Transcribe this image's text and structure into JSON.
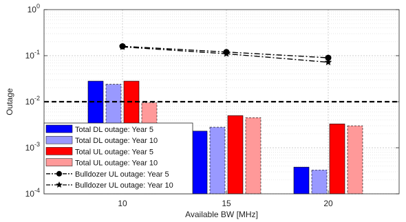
{
  "chart_data": {
    "type": "bar",
    "xlabel": "Available BW [MHz]",
    "ylabel": "Outage",
    "yscale": "log",
    "ylim": [
      0.0001,
      1
    ],
    "categories": [
      "10",
      "15",
      "20"
    ],
    "y_ticks": [
      {
        "value": 0.0001,
        "base": "10",
        "exp": "-4"
      },
      {
        "value": 0.001,
        "base": "10",
        "exp": "-3"
      },
      {
        "value": 0.01,
        "base": "10",
        "exp": "-2"
      },
      {
        "value": 0.1,
        "base": "10",
        "exp": "-1"
      },
      {
        "value": 1,
        "base": "10",
        "exp": "0"
      }
    ],
    "grid": true,
    "threshold": 0.01,
    "legend_position": "bottom-left",
    "series": [
      {
        "name": "Total DL outage: Year 5",
        "kind": "bar",
        "color": "#0000ff",
        "values": [
          0.028,
          0.0023,
          0.00038
        ]
      },
      {
        "name": "Total DL outage: Year 10",
        "kind": "bar",
        "color": "#9999ff",
        "values": [
          0.024,
          0.0028,
          0.00033
        ]
      },
      {
        "name": "Total UL outage: Year 5",
        "kind": "bar",
        "color": "#ff0000",
        "values": [
          0.028,
          0.005,
          0.0033
        ]
      },
      {
        "name": "Total UL outage: Year 10",
        "kind": "bar",
        "color": "#ff9999",
        "values": [
          0.0095,
          0.0045,
          0.003
        ]
      },
      {
        "name": "Bulldozer UL outage: Year 5",
        "kind": "line",
        "marker": "circle",
        "color": "#000000",
        "values": [
          0.16,
          0.12,
          0.09
        ]
      },
      {
        "name": "Bulldozer UL outage: Year 10",
        "kind": "line",
        "marker": "star",
        "color": "#000000",
        "values": [
          0.155,
          0.11,
          0.072
        ]
      }
    ]
  }
}
